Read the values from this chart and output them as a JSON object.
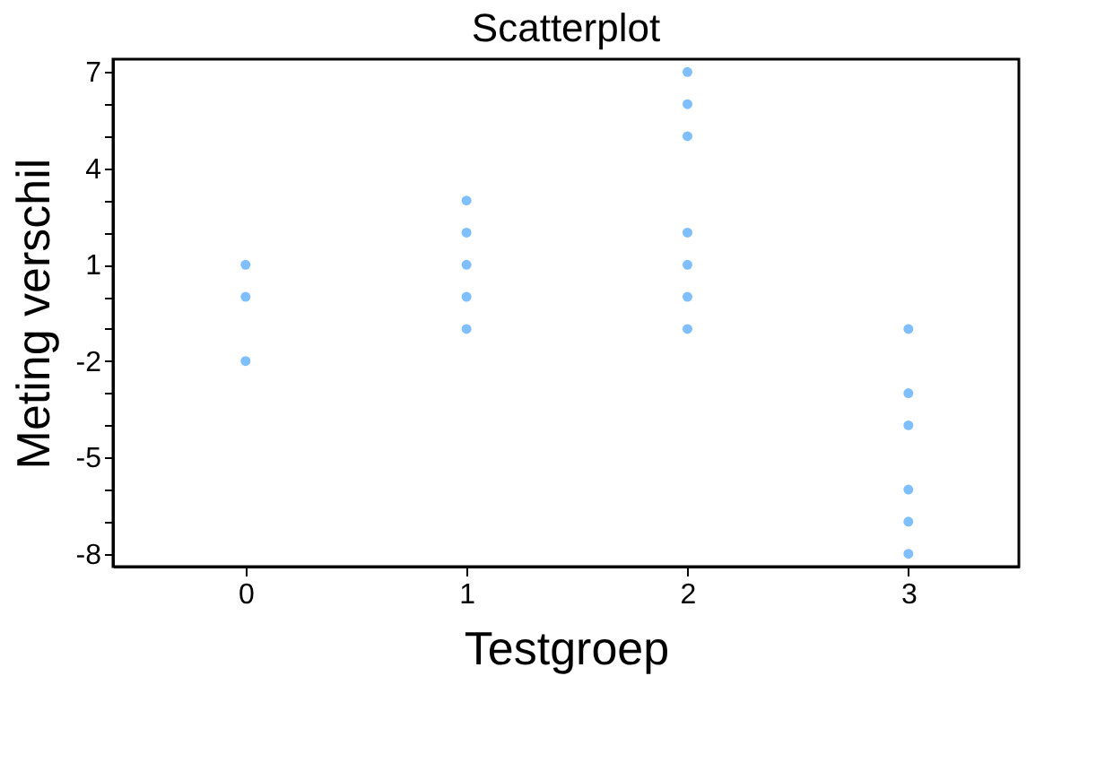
{
  "chart_data": {
    "type": "scatter",
    "title": "Scatterplot",
    "xlabel": "Testgroep",
    "ylabel": "Meting verschil",
    "series": [
      {
        "color": "#7fbfff",
        "x": [
          0,
          0,
          0,
          1,
          1,
          1,
          1,
          1,
          2,
          2,
          2,
          2,
          2,
          2,
          2,
          3,
          3,
          3,
          3,
          3,
          3
        ],
        "values": [
          1,
          0,
          -2,
          3,
          2,
          1,
          0,
          -1,
          7,
          6,
          5,
          2,
          1,
          0,
          -1,
          -1,
          -3,
          -4,
          -6,
          -7,
          -8
        ]
      }
    ],
    "xlim": [
      -0.6,
      3.5
    ],
    "xticks": [
      0,
      1,
      2,
      3
    ],
    "ylim": [
      -8.4,
      7.4
    ],
    "yticks": [
      -8,
      {
        "value": -7,
        "label": null
      },
      {
        "value": -6,
        "label": null
      },
      -5,
      {
        "value": -4,
        "label": null
      },
      {
        "value": -3,
        "label": null
      },
      -2,
      {
        "value": -1,
        "label": null
      },
      {
        "value": 0,
        "label": null
      },
      1,
      {
        "value": 2,
        "label": null
      },
      {
        "value": 3,
        "label": null
      },
      4,
      {
        "value": 5,
        "label": null
      },
      {
        "value": 6,
        "label": null
      },
      7
    ],
    "marker": "circle",
    "grid": false
  }
}
